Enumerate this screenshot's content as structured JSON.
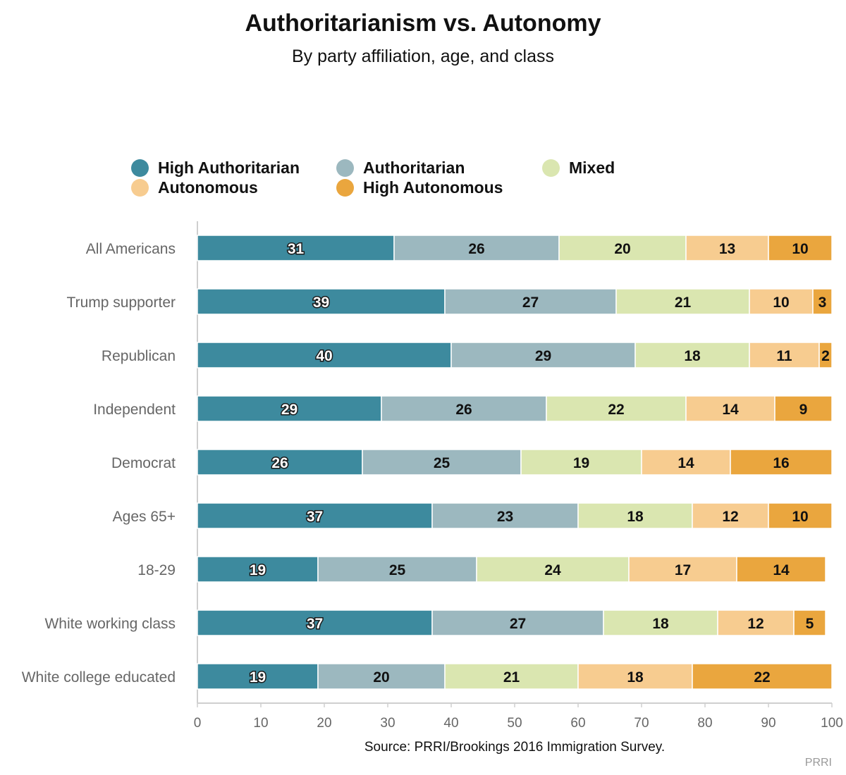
{
  "chart_data": {
    "type": "bar",
    "orientation": "horizontal",
    "stacked": true,
    "title": "Authoritarianism vs. Autonomy",
    "subtitle": "By party affiliation, age, and class",
    "source": "Source: PRRI/Brookings 2016 Immigration Survey.",
    "brand": "PRRI",
    "xlabel": "",
    "ylabel": "",
    "xlim": [
      0,
      100
    ],
    "xticks": [
      0,
      10,
      20,
      30,
      40,
      50,
      60,
      70,
      80,
      90,
      100
    ],
    "legend_position": "top",
    "categories": [
      "All Americans",
      "Trump supporter",
      "Republican",
      "Independent",
      "Democrat",
      "Ages 65+",
      "18-29",
      "White working class",
      "White college educated"
    ],
    "series": [
      {
        "name": "High Authoritarian",
        "color": "#3d8a9e",
        "values": [
          31,
          39,
          40,
          29,
          26,
          37,
          19,
          37,
          19
        ]
      },
      {
        "name": "Authoritarian",
        "color": "#9cb8bf",
        "values": [
          26,
          27,
          29,
          26,
          25,
          23,
          25,
          27,
          20
        ]
      },
      {
        "name": "Mixed",
        "color": "#dae6b0",
        "values": [
          20,
          21,
          18,
          22,
          19,
          18,
          24,
          18,
          21
        ]
      },
      {
        "name": "Autonomous",
        "color": "#f7cc90",
        "values": [
          13,
          10,
          11,
          14,
          14,
          12,
          17,
          12,
          18
        ]
      },
      {
        "name": "High Autonomous",
        "color": "#eaa63e",
        "values": [
          10,
          3,
          2,
          9,
          16,
          10,
          14,
          5,
          22
        ]
      }
    ]
  }
}
